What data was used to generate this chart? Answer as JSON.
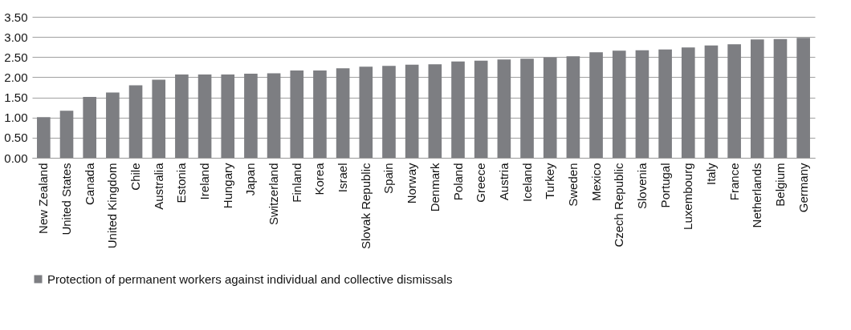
{
  "chart_data": {
    "type": "bar",
    "categories": [
      "New Zealand",
      "United States",
      "Canada",
      "United Kingdom",
      "Chile",
      "Australia",
      "Estonia",
      "Ireland",
      "Hungary",
      "Japan",
      "Switzerland",
      "Finland",
      "Korea",
      "Israel",
      "Slovak Republic",
      "Spain",
      "Norway",
      "Denmark",
      "Poland",
      "Greece",
      "Austria",
      "Iceland",
      "Turkey",
      "Sweden",
      "Mexico",
      "Czech Republic",
      "Slovenia",
      "Portugal",
      "Luxembourg",
      "Italy",
      "France",
      "Netherlands",
      "Belgium",
      "Germany"
    ],
    "series": [
      {
        "name": "Protection of permanent workers against individual and collective dismissals",
        "color": "#7d7e82",
        "values": [
          1.01,
          1.17,
          1.51,
          1.62,
          1.8,
          1.94,
          2.07,
          2.07,
          2.07,
          2.09,
          2.1,
          2.17,
          2.17,
          2.22,
          2.26,
          2.28,
          2.31,
          2.32,
          2.39,
          2.41,
          2.44,
          2.46,
          2.49,
          2.52,
          2.62,
          2.66,
          2.67,
          2.69,
          2.74,
          2.79,
          2.82,
          2.94,
          2.95,
          2.98
        ]
      }
    ],
    "ylim": [
      0,
      3.5
    ],
    "yticks": [
      {
        "value": 0,
        "label": "0.00"
      },
      {
        "value": 0.5,
        "label": "0.50"
      },
      {
        "value": 1,
        "label": "1.00"
      },
      {
        "value": 1.5,
        "label": "1.50"
      },
      {
        "value": 2,
        "label": "2.00"
      },
      {
        "value": 2.5,
        "label": "2.50"
      },
      {
        "value": 3,
        "label": "3.00"
      },
      {
        "value": 3.5,
        "label": "3.50"
      }
    ],
    "grid": "y",
    "legend": "bottom"
  }
}
